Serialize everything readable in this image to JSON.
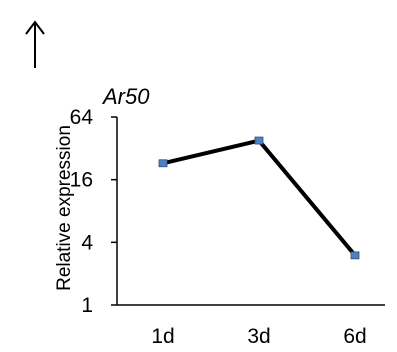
{
  "indicator": {
    "icon": "arrow-up-icon"
  },
  "chart_data": {
    "type": "line",
    "title": "Ar50",
    "xlabel": "",
    "ylabel": "Relative expression",
    "categories": [
      "1d",
      "3d",
      "6d"
    ],
    "series": [
      {
        "values": [
          23,
          38,
          3
        ]
      }
    ],
    "yscale": "log2",
    "ylim": [
      1,
      64
    ],
    "yticks": [
      1,
      4,
      16,
      64
    ],
    "ytick_labels": [
      "1",
      "4",
      "16",
      "64"
    ],
    "grid": false,
    "legend": "none",
    "colors": {
      "line": "#000000",
      "marker": "#4f81bd",
      "axis": "#000000"
    }
  }
}
